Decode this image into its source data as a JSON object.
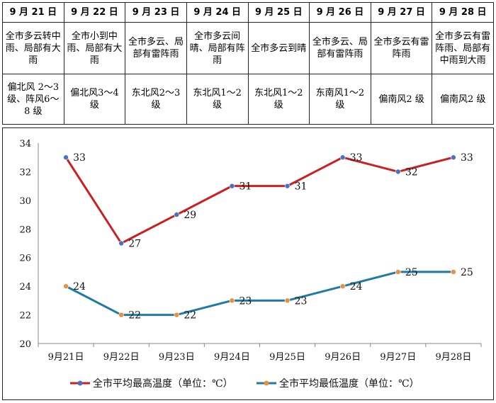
{
  "forecast": {
    "days": [
      {
        "date": "9 月 21 日",
        "weather": "全市多云转中雨、局部有大雨",
        "wind": "偏北风 2～3 级、阵风6～8 级"
      },
      {
        "date": "9 月 22 日",
        "weather": "全市小到中雨、局部有大雨",
        "wind": "偏北风3～4 级"
      },
      {
        "date": "9 月 23 日",
        "weather": "全市多云、局部有雷阵雨",
        "wind": "东北风2～3 级"
      },
      {
        "date": "9 月 24 日",
        "weather": "全市多云间晴、局部有阵雨",
        "wind": "东北风1～2 级"
      },
      {
        "date": "9 月 25 日",
        "weather": "全市多云到晴",
        "wind": "东北风1～2 级"
      },
      {
        "date": "9 月 26 日",
        "weather": "全市多云、局部有雷阵雨",
        "wind": "东南风1～2 级"
      },
      {
        "date": "9 月 27 日",
        "weather": "全市多云有雷阵雨",
        "wind": "偏南风2 级"
      },
      {
        "date": "9 月 28 日",
        "weather": "全市多云有雷阵雨、局部有中雨到大雨",
        "wind": "偏南风2 级"
      }
    ]
  },
  "chart_data": {
    "type": "line",
    "categories": [
      "9月21日",
      "9月22日",
      "9月23日",
      "9月24日",
      "9月25日",
      "9月26日",
      "9月27日",
      "9月28日"
    ],
    "ylim": [
      20,
      34
    ],
    "yticks": [
      "20",
      "22",
      "24",
      "26",
      "28",
      "30",
      "32",
      "34"
    ],
    "series": [
      {
        "name": "全市平均最高温度（单位：℃）",
        "color": "#cc1f1f",
        "marker": "#4a72c4",
        "values": [
          33,
          27,
          29,
          31,
          31,
          33,
          32,
          33
        ],
        "labels": [
          "33",
          "27",
          "29",
          "31",
          "31",
          "33",
          "32",
          "33"
        ]
      },
      {
        "name": "全市平均最低温度（单位：℃）",
        "color": "#1f7aa8",
        "marker": "#e8913a",
        "values": [
          24,
          22,
          22,
          23,
          23,
          24,
          25,
          25
        ],
        "labels": [
          "24",
          "22",
          "22",
          "23",
          "23",
          "24",
          "25",
          "25"
        ]
      }
    ],
    "legend": "bottom"
  }
}
